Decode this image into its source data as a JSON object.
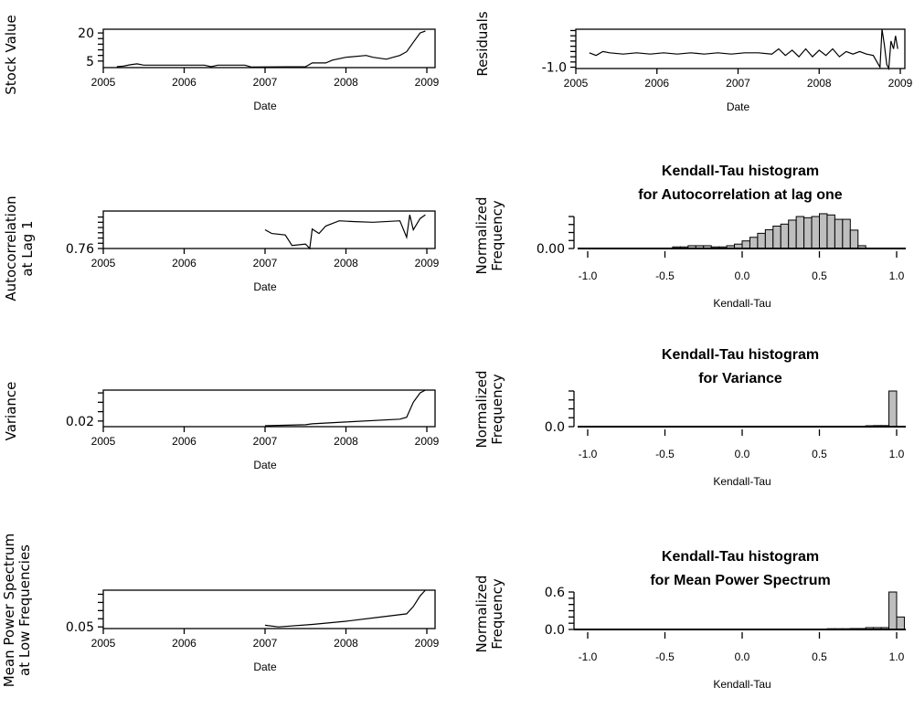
{
  "chart_data": [
    {
      "id": "stock",
      "type": "line",
      "xlabel": "Date",
      "ylabel": [
        "Stock Value"
      ],
      "xticks": [
        "2005",
        "2006",
        "2007",
        "2008",
        "2009"
      ],
      "yticks_labeled": [
        5,
        20
      ],
      "ylim": [
        1.5,
        22
      ],
      "x": [
        "2005-03",
        "2005-04",
        "2005-05",
        "2005-06",
        "2005-07",
        "2006-04",
        "2006-05",
        "2006-06",
        "2006-10",
        "2006-11",
        "2007-07",
        "2007-08",
        "2007-10",
        "2007-11",
        "2008-01",
        "2008-04",
        "2008-05",
        "2008-07",
        "2008-08",
        "2008-09",
        "2008-10",
        "2008-11",
        "2008-12",
        "2008-12-25"
      ],
      "y": [
        2,
        2.3,
        3,
        3.5,
        2.8,
        2.8,
        2,
        2.8,
        2.8,
        1.8,
        2,
        4,
        4,
        5.5,
        7,
        8,
        7,
        6,
        7,
        8,
        10,
        15,
        20,
        21
      ]
    },
    {
      "id": "residuals",
      "type": "line",
      "xlabel": "Date",
      "ylabel": [
        "Residuals"
      ],
      "xticks": [
        "2005",
        "2006",
        "2007",
        "2008",
        "2009"
      ],
      "yticks_labeled": [
        -1.0
      ],
      "ylim": [
        -1.05,
        0.45
      ],
      "x": [
        "2005-03",
        "2005-04",
        "2005-05",
        "2005-06",
        "2005-08",
        "2005-10",
        "2005-12",
        "2006-02",
        "2006-04",
        "2006-06",
        "2006-08",
        "2006-10",
        "2006-12",
        "2007-02",
        "2007-04",
        "2007-06",
        "2007-07",
        "2007-08",
        "2007-09",
        "2007-10",
        "2007-11",
        "2007-12",
        "2008-01",
        "2008-02",
        "2008-03",
        "2008-04",
        "2008-05",
        "2008-06",
        "2008-07",
        "2008-08",
        "2008-09",
        "2008-10",
        "2008-10-10",
        "2008-10-20",
        "2008-11",
        "2008-11-10",
        "2008-11-20",
        "2008-12",
        "2008-12-10",
        "2008-12-20"
      ],
      "y": [
        -0.45,
        -0.55,
        -0.4,
        -0.45,
        -0.5,
        -0.45,
        -0.5,
        -0.45,
        -0.5,
        -0.45,
        -0.5,
        -0.45,
        -0.5,
        -0.45,
        -0.45,
        -0.5,
        -0.3,
        -0.55,
        -0.35,
        -0.6,
        -0.3,
        -0.6,
        -0.35,
        -0.55,
        -0.3,
        -0.6,
        -0.4,
        -0.5,
        -0.4,
        -0.5,
        -0.55,
        -1.0,
        0.45,
        -0.1,
        -0.9,
        -1.05,
        0.0,
        -0.3,
        0.2,
        -0.3
      ]
    },
    {
      "id": "autocorr",
      "type": "line",
      "xlabel": "Date",
      "ylabel": [
        "Autocorrelation",
        "at Lag 1"
      ],
      "xticks": [
        "2005",
        "2006",
        "2007",
        "2008",
        "2009"
      ],
      "yticks_labeled": [
        0.76
      ],
      "ylim": [
        0.76,
        0.81
      ],
      "x": [
        "2007-01",
        "2007-02",
        "2007-04",
        "2007-05",
        "2007-07",
        "2007-07-20",
        "2007-08",
        "2007-09",
        "2007-10",
        "2007-12",
        "2008-02",
        "2008-05",
        "2008-09",
        "2008-10",
        "2008-10-15",
        "2008-11",
        "2008-12",
        "2008-12-25"
      ],
      "y": [
        0.785,
        0.78,
        0.778,
        0.764,
        0.766,
        0.76,
        0.786,
        0.78,
        0.79,
        0.797,
        0.796,
        0.795,
        0.797,
        0.775,
        0.805,
        0.785,
        0.8,
        0.805
      ]
    },
    {
      "id": "hist-ac",
      "type": "bar",
      "title": [
        "Kendall-Tau histogram",
        "for Autocorrelation at lag one"
      ],
      "xlabel": "Kendall-Tau",
      "ylabel": [
        "Normalized",
        "Frequency"
      ],
      "xticks": [
        "-1.0",
        "-0.5",
        "0.0",
        "0.5",
        "1.0"
      ],
      "yticks_labeled": [
        "0.00"
      ],
      "ylim": [
        0,
        0.08
      ],
      "bin_width": 0.05,
      "bin_starts": [
        -0.45,
        -0.4,
        -0.35,
        -0.3,
        -0.25,
        -0.2,
        -0.15,
        -0.1,
        -0.05,
        0.0,
        0.05,
        0.1,
        0.15,
        0.2,
        0.25,
        0.3,
        0.35,
        0.4,
        0.45,
        0.5,
        0.55,
        0.6,
        0.65,
        0.7,
        0.75
      ],
      "values": [
        0.004,
        0.004,
        0.007,
        0.007,
        0.007,
        0.004,
        0.004,
        0.007,
        0.011,
        0.019,
        0.028,
        0.038,
        0.047,
        0.056,
        0.061,
        0.071,
        0.08,
        0.077,
        0.08,
        0.087,
        0.084,
        0.073,
        0.073,
        0.046,
        0.007
      ],
      "bar_color": "#bebebe"
    },
    {
      "id": "variance",
      "type": "line",
      "xlabel": "Date",
      "ylabel": [
        "Variance"
      ],
      "xticks": [
        "2005",
        "2006",
        "2007",
        "2008",
        "2009"
      ],
      "yticks_labeled": [
        0.02
      ],
      "ylim": [
        0.014,
        0.053
      ],
      "x": [
        "2007-01",
        "2007-07",
        "2007-08",
        "2008-01",
        "2008-09",
        "2008-10",
        "2008-11",
        "2008-12",
        "2008-12-25"
      ],
      "y": [
        0.015,
        0.016,
        0.017,
        0.019,
        0.022,
        0.024,
        0.04,
        0.05,
        0.053
      ]
    },
    {
      "id": "hist-var",
      "type": "bar",
      "title": [
        "Kendall-Tau histogram",
        "for Variance"
      ],
      "xlabel": "Kendall-Tau",
      "ylabel": [
        "Normalized",
        "Frequency"
      ],
      "xticks": [
        "-1.0",
        "-0.5",
        "0.0",
        "0.5",
        "1.0"
      ],
      "yticks_labeled": [
        "0.0"
      ],
      "ylim": [
        0,
        0.4
      ],
      "bin_width": 0.05,
      "bin_starts": [
        0.8,
        0.85,
        0.9,
        0.95
      ],
      "values": [
        0.01,
        0.012,
        0.012,
        0.4
      ],
      "bar_color": "#bebebe"
    },
    {
      "id": "mps",
      "type": "line",
      "xlabel": "Date",
      "ylabel": [
        "Mean Power Spectrum",
        "at Low Frequencies"
      ],
      "xticks": [
        "2005",
        "2006",
        "2007",
        "2008",
        "2009"
      ],
      "yticks_labeled": [
        0.05
      ],
      "ylim": [
        0.048,
        0.095
      ],
      "x": [
        "2007-01",
        "2007-03",
        "2007-08",
        "2008-01",
        "2008-06",
        "2008-10",
        "2008-11",
        "2008-12",
        "2008-12-25"
      ],
      "y": [
        0.052,
        0.05,
        0.053,
        0.057,
        0.062,
        0.066,
        0.075,
        0.088,
        0.095
      ]
    },
    {
      "id": "hist-mps",
      "type": "bar",
      "title": [
        "Kendall-Tau histogram",
        "for Mean Power Spectrum"
      ],
      "xlabel": "Kendall-Tau",
      "ylabel": [
        "Normalized",
        "Frequency"
      ],
      "xticks": [
        "-1.0",
        "-0.5",
        "0.0",
        "0.5",
        "1.0"
      ],
      "yticks_labeled": [
        "0.0",
        "0.6"
      ],
      "ylim": [
        0,
        0.6
      ],
      "bin_width": 0.05,
      "bin_starts": [
        0.55,
        0.6,
        0.65,
        0.7,
        0.75,
        0.8,
        0.85,
        0.9,
        0.95,
        1.0
      ],
      "values": [
        0.012,
        0.012,
        0.012,
        0.015,
        0.015,
        0.03,
        0.03,
        0.03,
        0.6,
        0.2
      ],
      "bar_color": "#bebebe"
    }
  ]
}
